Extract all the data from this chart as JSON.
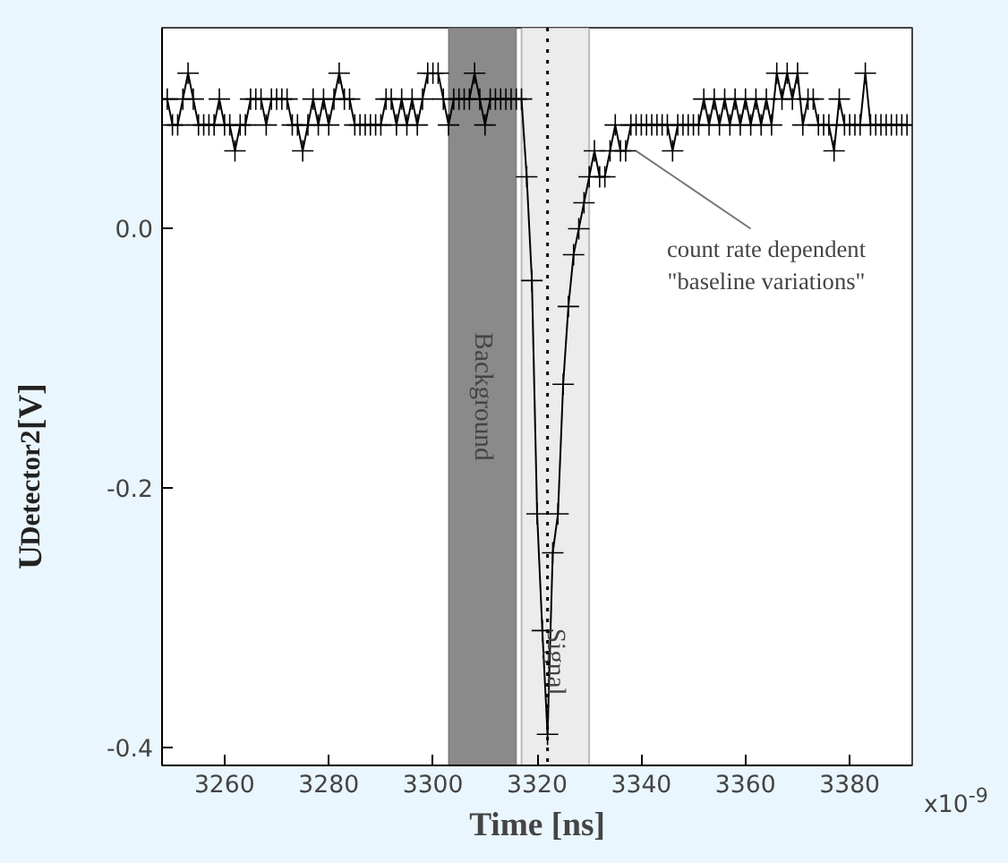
{
  "chart_data": {
    "type": "line",
    "xlabel": "Time [ns]",
    "ylabel": "U$_{Detector2}$[V]",
    "x": [
      3248,
      3249,
      3250,
      3251,
      3252,
      3253,
      3254,
      3255,
      3256,
      3257,
      3258,
      3259,
      3260,
      3261,
      3262,
      3263,
      3264,
      3265,
      3266,
      3267,
      3268,
      3269,
      3270,
      3271,
      3272,
      3273,
      3274,
      3275,
      3276,
      3277,
      3278,
      3279,
      3280,
      3281,
      3282,
      3283,
      3284,
      3285,
      3286,
      3287,
      3288,
      3289,
      3290,
      3291,
      3292,
      3293,
      3294,
      3295,
      3296,
      3297,
      3298,
      3299,
      3300,
      3301,
      3302,
      3303,
      3304,
      3305,
      3306,
      3307,
      3308,
      3309,
      3310,
      3311,
      3312,
      3313,
      3314,
      3315,
      3316,
      3317,
      3318,
      3319,
      3320,
      3321,
      3322,
      3323,
      3324,
      3325,
      3326,
      3327,
      3328,
      3329,
      3330,
      3331,
      3332,
      3333,
      3334,
      3335,
      3336,
      3337,
      3338,
      3339,
      3340,
      3341,
      3342,
      3343,
      3344,
      3345,
      3346,
      3347,
      3348,
      3349,
      3350,
      3351,
      3352,
      3353,
      3354,
      3355,
      3356,
      3357,
      3358,
      3359,
      3360,
      3361,
      3362,
      3363,
      3364,
      3365,
      3366,
      3367,
      3368,
      3369,
      3370,
      3371,
      3372,
      3373,
      3374,
      3375,
      3376,
      3377,
      3378,
      3379,
      3380,
      3381,
      3382,
      3383,
      3384,
      3385,
      3386,
      3387,
      3388,
      3389,
      3390,
      3391
    ],
    "series": [
      {
        "color": "#000000",
        "values": [
          0.1,
          0.1,
          0.08,
          0.08,
          0.1,
          0.12,
          0.1,
          0.08,
          0.08,
          0.08,
          0.08,
          0.1,
          0.08,
          0.08,
          0.06,
          0.08,
          0.08,
          0.1,
          0.1,
          0.1,
          0.08,
          0.1,
          0.1,
          0.1,
          0.1,
          0.08,
          0.08,
          0.06,
          0.08,
          0.1,
          0.08,
          0.1,
          0.08,
          0.1,
          0.12,
          0.1,
          0.1,
          0.08,
          0.08,
          0.08,
          0.08,
          0.08,
          0.08,
          0.1,
          0.1,
          0.08,
          0.1,
          0.08,
          0.1,
          0.08,
          0.1,
          0.12,
          0.12,
          0.12,
          0.1,
          0.08,
          0.1,
          0.1,
          0.1,
          0.1,
          0.12,
          0.1,
          0.08,
          0.1,
          0.1,
          0.1,
          0.1,
          0.1,
          0.1,
          0.1,
          0.04,
          -0.04,
          -0.22,
          -0.31,
          -0.39,
          -0.25,
          -0.22,
          -0.12,
          -0.06,
          -0.02,
          0.0,
          0.02,
          0.04,
          0.06,
          0.04,
          0.04,
          0.06,
          0.08,
          0.06,
          0.06,
          0.08,
          0.08,
          0.08,
          0.08,
          0.08,
          0.08,
          0.08,
          0.08,
          0.06,
          0.08,
          0.08,
          0.08,
          0.08,
          0.08,
          0.1,
          0.08,
          0.1,
          0.08,
          0.1,
          0.08,
          0.1,
          0.08,
          0.1,
          0.08,
          0.1,
          0.08,
          0.1,
          0.08,
          0.12,
          0.1,
          0.12,
          0.1,
          0.12,
          0.08,
          0.1,
          0.1,
          0.08,
          0.08,
          0.08,
          0.06,
          0.1,
          0.08,
          0.08,
          0.08,
          0.08,
          0.12,
          0.08,
          0.08,
          0.08,
          0.08,
          0.08,
          0.08,
          0.08,
          0.08
        ]
      }
    ],
    "xlim": [
      3248,
      3392
    ],
    "ylim": [
      -0.414,
      0.155
    ],
    "xticks": [
      3260,
      3280,
      3300,
      3320,
      3340,
      3360,
      3380
    ],
    "yticks": [
      {
        "value": 0.0,
        "label": "0.0"
      },
      {
        "value": -0.2,
        "label": "-0.2"
      },
      {
        "value": -0.4,
        "label": "-0.4"
      }
    ],
    "bands": [
      {
        "axis": "x",
        "from": 3303,
        "to": 3316,
        "label": "Background",
        "color": "#8a8a8a"
      },
      {
        "axis": "x",
        "from": 3317,
        "to": 3330,
        "label": "Signal",
        "color": "#ececec"
      }
    ],
    "ref_lines": [
      {
        "axis": "x",
        "value": 3322,
        "line_style": "dotted"
      }
    ],
    "annotations": [
      "x10$^{-9}$",
      {
        "text": "count rate dependent\n\"baseline variations\"",
        "x": 3339,
        "y": 0.06
      }
    ],
    "marker": "cross",
    "line_style": "solid",
    "grid": false
  }
}
